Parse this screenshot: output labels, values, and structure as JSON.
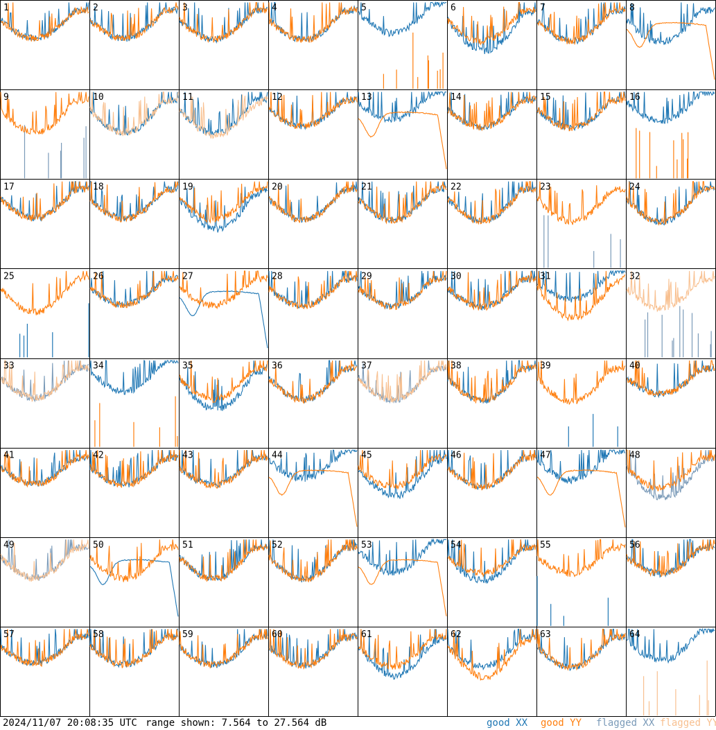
{
  "chart_data": {
    "type": "line",
    "grid": "8x8",
    "x_unit": "frequency channel",
    "y_range_db": [
      7.564,
      27.564
    ],
    "timestamp": "2024/11/07 20:08:35 UTC",
    "range_label": "range shown: 7.564 to 27.564 dB",
    "series_colors": {
      "good XX": "#1f77b4",
      "good YY": "#ff7f0e",
      "flagged XX": "#7a9ab8",
      "flagged YY": "#f8c090"
    },
    "legend": [
      {
        "label": "good XX",
        "color": "#1f77b4"
      },
      {
        "label": "good YY",
        "color": "#ff7f0e"
      },
      {
        "label": "flagged XX",
        "color": "#7a9ab8"
      },
      {
        "label": "flagged YY",
        "color": "#f8c090"
      }
    ],
    "tiles": [
      {
        "label": "1",
        "xx": "normal",
        "yy": "normal"
      },
      {
        "label": "2",
        "xx": "normal",
        "yy": "normal"
      },
      {
        "label": "3",
        "xx": "normal",
        "yy": "normal"
      },
      {
        "label": "4",
        "xx": "normal",
        "yy": "normal"
      },
      {
        "label": "5",
        "xx": "high",
        "yy": "spiky"
      },
      {
        "label": "6",
        "xx": "low",
        "yy": "normal"
      },
      {
        "label": "7",
        "xx": "normal",
        "yy": "normal"
      },
      {
        "label": "8",
        "xx": "normal",
        "yy": "smooth"
      },
      {
        "label": "9",
        "xx": "spiky",
        "yy": "normal",
        "flagged": "xx"
      },
      {
        "label": "10",
        "xx": "normal",
        "yy": "normal",
        "flagged": "yy"
      },
      {
        "label": "11",
        "xx": "normal",
        "yy": "low",
        "flagged": "yy"
      },
      {
        "label": "12",
        "xx": "normal",
        "yy": "normal"
      },
      {
        "label": "13",
        "xx": "high",
        "yy": "smooth"
      },
      {
        "label": "14",
        "xx": "normal",
        "yy": "normal"
      },
      {
        "label": "15",
        "xx": "normal",
        "yy": "normal"
      },
      {
        "label": "16",
        "xx": "high",
        "yy": "spiky"
      },
      {
        "label": "17",
        "xx": "normal",
        "yy": "normal"
      },
      {
        "label": "18",
        "xx": "normal",
        "yy": "normal"
      },
      {
        "label": "19",
        "xx": "low",
        "yy": "normal"
      },
      {
        "label": "20",
        "xx": "normal",
        "yy": "normal"
      },
      {
        "label": "21",
        "xx": "normal",
        "yy": "normal"
      },
      {
        "label": "22",
        "xx": "normal",
        "yy": "normal"
      },
      {
        "label": "23",
        "xx": "spiky",
        "yy": "normal",
        "flagged": "xx"
      },
      {
        "label": "24",
        "xx": "normal",
        "yy": "normal"
      },
      {
        "label": "25",
        "xx": "spiky",
        "yy": "normal"
      },
      {
        "label": "26",
        "xx": "normal",
        "yy": "normal"
      },
      {
        "label": "27",
        "xx": "smooth",
        "yy": "normal"
      },
      {
        "label": "28",
        "xx": "normal",
        "yy": "normal"
      },
      {
        "label": "29",
        "xx": "normal",
        "yy": "normal"
      },
      {
        "label": "30",
        "xx": "normal",
        "yy": "normal"
      },
      {
        "label": "31",
        "xx": "high",
        "yy": "low"
      },
      {
        "label": "32",
        "xx": "spiky",
        "yy": "normal",
        "flagged": "both"
      },
      {
        "label": "33",
        "xx": "normal",
        "yy": "normal",
        "flagged": "both"
      },
      {
        "label": "34",
        "xx": "high",
        "yy": "spiky"
      },
      {
        "label": "35",
        "xx": "low",
        "yy": "normal"
      },
      {
        "label": "36",
        "xx": "normal",
        "yy": "normal"
      },
      {
        "label": "37",
        "xx": "normal",
        "yy": "normal",
        "flagged": "both"
      },
      {
        "label": "38",
        "xx": "normal",
        "yy": "normal"
      },
      {
        "label": "39",
        "xx": "spiky",
        "yy": "normal"
      },
      {
        "label": "40",
        "xx": "normal",
        "yy": "normal"
      },
      {
        "label": "41",
        "xx": "normal",
        "yy": "normal"
      },
      {
        "label": "42",
        "xx": "normal",
        "yy": "normal"
      },
      {
        "label": "43",
        "xx": "normal",
        "yy": "normal"
      },
      {
        "label": "44",
        "xx": "high",
        "yy": "smooth"
      },
      {
        "label": "45",
        "xx": "low",
        "yy": "normal"
      },
      {
        "label": "46",
        "xx": "normal",
        "yy": "normal"
      },
      {
        "label": "47",
        "xx": "high",
        "yy": "smooth"
      },
      {
        "label": "48",
        "xx": "low",
        "yy": "normal",
        "flagged": "xx"
      },
      {
        "label": "49",
        "xx": "normal",
        "yy": "normal",
        "flagged": "both"
      },
      {
        "label": "50",
        "xx": "smooth",
        "yy": "normal"
      },
      {
        "label": "51",
        "xx": "normal",
        "yy": "normal"
      },
      {
        "label": "52",
        "xx": "normal",
        "yy": "normal"
      },
      {
        "label": "53",
        "xx": "high",
        "yy": "smooth"
      },
      {
        "label": "54",
        "xx": "normal",
        "yy": "normal"
      },
      {
        "label": "55",
        "xx": "spiky",
        "yy": "normal"
      },
      {
        "label": "56",
        "xx": "normal",
        "yy": "normal"
      },
      {
        "label": "57",
        "xx": "normal",
        "yy": "normal"
      },
      {
        "label": "58",
        "xx": "normal",
        "yy": "normal"
      },
      {
        "label": "59",
        "xx": "normal",
        "yy": "normal"
      },
      {
        "label": "60",
        "xx": "normal",
        "yy": "normal"
      },
      {
        "label": "61",
        "xx": "low",
        "yy": "normal"
      },
      {
        "label": "62",
        "xx": "normal",
        "yy": "low"
      },
      {
        "label": "63",
        "xx": "normal",
        "yy": "normal"
      },
      {
        "label": "64",
        "xx": "high",
        "yy": "spiky",
        "flagged": "yy"
      }
    ]
  }
}
